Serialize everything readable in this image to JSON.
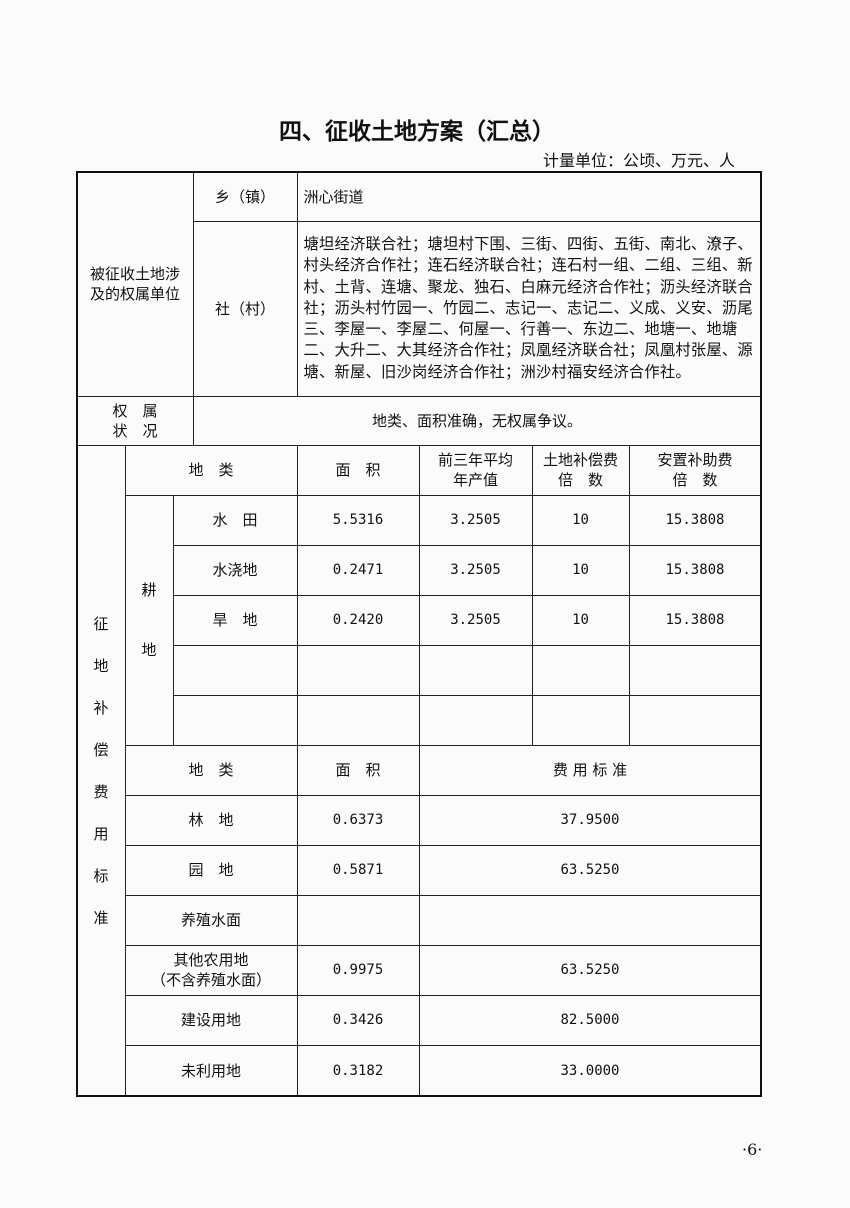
{
  "title": "四、征收土地方案（汇总）",
  "unit": "计量单位：公顷、万元、人",
  "owner": {
    "label": "被征收土地涉及的权属单位",
    "town_label": "乡（镇）",
    "town": "洲心街道",
    "village_label": "社（村）",
    "villages": "塘坦经济联合社；塘坦村下围、三街、四街、五街、南北、潦子、村头经济合作社；连石经济联合社；连石村一组、二组、三组、新村、土背、连塘、聚龙、独石、白麻元经济合作社；沥头经济联合社；沥头村竹园一、竹园二、志记一、志记二、义成、义安、沥尾三、李屋一、李屋二、何屋一、行善一、东边二、地塘一、地塘二、大升二、大其经济合作社；凤凰经济联合社；凤凰村张屋、源塘、新屋、旧沙岗经济合作社；洲沙村福安经济合作社。"
  },
  "status": {
    "label1": "权　属",
    "label2": "状　况",
    "value": "地类、面积准确，无权属争议。"
  },
  "comp": {
    "side_label": [
      "征",
      "地",
      "补",
      "偿",
      "费",
      "用",
      "标",
      "准"
    ],
    "arable_label": [
      "耕",
      "地"
    ],
    "header": {
      "type": "地　类",
      "area": "面　积",
      "output1": "前三年平均",
      "output2": "年产值",
      "land1": "土地补偿费",
      "land2": "倍　数",
      "resettle1": "安置补助费",
      "resettle2": "倍　数"
    },
    "arable_rows": [
      {
        "type": "水　田",
        "area": "5.5316",
        "output": "3.2505",
        "land": "10",
        "resettle": "15.3808"
      },
      {
        "type": "水浇地",
        "area": "0.2471",
        "output": "3.2505",
        "land": "10",
        "resettle": "15.3808"
      },
      {
        "type": "旱　地",
        "area": "0.2420",
        "output": "3.2505",
        "land": "10",
        "resettle": "15.3808"
      }
    ],
    "header2": {
      "type": "地　类",
      "area": "面　积",
      "standard": "费 用 标 准"
    },
    "other_rows": [
      {
        "type": "林　地",
        "area": "0.6373",
        "standard": "37.9500"
      },
      {
        "type": "园　地",
        "area": "0.5871",
        "standard": "63.5250"
      },
      {
        "type": "养殖水面",
        "area": "",
        "standard": ""
      },
      {
        "type": "其他农用地",
        "type2": "（不含养殖水面）",
        "area": "0.9975",
        "standard": "63.5250"
      },
      {
        "type": "建设用地",
        "area": "0.3426",
        "standard": "82.5000"
      },
      {
        "type": "未利用地",
        "area": "0.3182",
        "standard": "33.0000"
      }
    ]
  },
  "page_number": "6"
}
